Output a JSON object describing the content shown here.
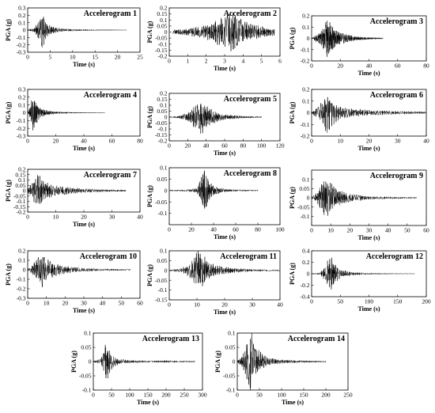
{
  "chart_data": [
    {
      "type": "line",
      "title": "Accelerogram 1",
      "xlabel": "Time (s)",
      "ylabel": "PGA (g)",
      "xlim": [
        0,
        25
      ],
      "ylim": [
        -0.3,
        0.3
      ],
      "xticks": [
        0,
        5,
        10,
        15,
        20,
        25
      ],
      "yticks": [
        -0.3,
        -0.2,
        -0.1,
        0,
        0.1,
        0.2,
        0.3
      ],
      "grid": false,
      "series_color": "#000000",
      "envelope": {
        "x": [
          0,
          1.5,
          2.5,
          3,
          3.3,
          3.8,
          4.5,
          6,
          8,
          12,
          16,
          20,
          22
        ],
        "amplitude": [
          0.005,
          0.03,
          0.14,
          0.24,
          0.27,
          0.16,
          0.09,
          0.04,
          0.02,
          0.01,
          0.006,
          0.004,
          0.002
        ]
      }
    },
    {
      "type": "line",
      "title": "Accelerogram 2",
      "xlabel": "Time (s)",
      "ylabel": "PGA (g)",
      "xlim": [
        0,
        6
      ],
      "ylim": [
        -0.2,
        0.2
      ],
      "xticks": [
        0,
        1,
        2,
        3,
        4,
        5,
        6
      ],
      "yticks": [
        -0.2,
        -0.15,
        -0.1,
        -0.05,
        0,
        0.05,
        0.1,
        0.15,
        0.2
      ],
      "grid": false,
      "series_color": "#000000",
      "envelope": {
        "x": [
          0.2,
          1,
          2,
          2.5,
          3,
          3.3,
          3.6,
          4,
          4.5,
          5,
          5.7
        ],
        "amplitude": [
          0.02,
          0.03,
          0.06,
          0.1,
          0.14,
          0.19,
          0.16,
          0.1,
          0.07,
          0.05,
          0.03
        ]
      }
    },
    {
      "type": "line",
      "title": "Accelerogram 3",
      "xlabel": "Time (s)",
      "ylabel": "PGA (g)",
      "xlim": [
        0,
        80
      ],
      "ylim": [
        -0.2,
        0.2
      ],
      "xticks": [
        0,
        20,
        40,
        60,
        80
      ],
      "yticks": [
        -0.2,
        -0.1,
        0,
        0.1,
        0.2
      ],
      "grid": false,
      "series_color": "#000000",
      "envelope": {
        "x": [
          0,
          4,
          8,
          10,
          12,
          16,
          22,
          30,
          40,
          50
        ],
        "amplitude": [
          0.005,
          0.04,
          0.1,
          0.18,
          0.16,
          0.09,
          0.05,
          0.02,
          0.01,
          0.005
        ]
      }
    },
    {
      "type": "line",
      "title": "Accelerogram 4",
      "xlabel": "Time (s)",
      "ylabel": "PGA (g)",
      "xlim": [
        0,
        80
      ],
      "ylim": [
        -0.3,
        0.3
      ],
      "xticks": [
        0,
        20,
        40,
        60,
        80
      ],
      "yticks": [
        -0.3,
        -0.2,
        -0.1,
        0,
        0.1,
        0.2,
        0.3
      ],
      "grid": false,
      "series_color": "#000000",
      "envelope": {
        "x": [
          0,
          2,
          3,
          4,
          6,
          8,
          12,
          20,
          30,
          40,
          55
        ],
        "amplitude": [
          0.01,
          0.1,
          0.2,
          0.26,
          0.18,
          0.08,
          0.04,
          0.015,
          0.008,
          0.004,
          0.002
        ]
      }
    },
    {
      "type": "line",
      "title": "Accelerogram 5",
      "xlabel": "Time (s)",
      "ylabel": "PGA (g)",
      "xlim": [
        0,
        120
      ],
      "ylim": [
        -0.2,
        0.2
      ],
      "xticks": [
        0,
        20,
        40,
        60,
        80,
        100,
        120
      ],
      "yticks": [
        -0.2,
        -0.15,
        -0.1,
        -0.05,
        0,
        0.05,
        0.1,
        0.15,
        0.2
      ],
      "grid": false,
      "series_color": "#000000",
      "envelope": {
        "x": [
          0,
          10,
          20,
          25,
          30,
          35,
          40,
          50,
          60,
          80,
          100
        ],
        "amplitude": [
          0.003,
          0.01,
          0.04,
          0.08,
          0.12,
          0.15,
          0.1,
          0.05,
          0.025,
          0.01,
          0.005
        ]
      }
    },
    {
      "type": "line",
      "title": "Accelerogram 6",
      "xlabel": "Time (s)",
      "ylabel": "PGA (g)",
      "xlim": [
        0,
        40
      ],
      "ylim": [
        -0.2,
        0.2
      ],
      "xticks": [
        0,
        10,
        20,
        30,
        40
      ],
      "yticks": [
        -0.2,
        -0.1,
        0,
        0.1,
        0.2
      ],
      "grid": false,
      "series_color": "#000000",
      "envelope": {
        "x": [
          0,
          2,
          4,
          5,
          6,
          7,
          8,
          10,
          14,
          20,
          30,
          40
        ],
        "amplitude": [
          0.01,
          0.05,
          0.12,
          0.2,
          0.17,
          0.13,
          0.09,
          0.06,
          0.04,
          0.025,
          0.015,
          0.01
        ]
      }
    },
    {
      "type": "line",
      "title": "Accelerogram 7",
      "xlabel": "Time (s)",
      "ylabel": "PGA (g)",
      "xlim": [
        0,
        40
      ],
      "ylim": [
        -0.2,
        0.2
      ],
      "xticks": [
        0,
        10,
        20,
        30,
        40
      ],
      "yticks": [
        -0.2,
        -0.15,
        -0.1,
        -0.05,
        0,
        0.05,
        0.1,
        0.15,
        0.2
      ],
      "grid": false,
      "series_color": "#000000",
      "envelope": {
        "x": [
          0,
          1,
          2,
          3,
          4,
          5,
          7,
          10,
          15,
          20,
          25,
          30,
          35
        ],
        "amplitude": [
          0.02,
          0.06,
          0.12,
          0.16,
          0.18,
          0.12,
          0.08,
          0.05,
          0.035,
          0.02,
          0.015,
          0.01,
          0.008
        ]
      }
    },
    {
      "type": "line",
      "title": "Accelerogram 8",
      "xlabel": "Time (s)",
      "ylabel": "PGA (g)",
      "xlim": [
        0,
        100
      ],
      "ylim": [
        -0.15,
        0.1
      ],
      "xticks": [
        0,
        20,
        40,
        60,
        80,
        100
      ],
      "yticks": [
        -0.1,
        -0.05,
        0,
        0.05,
        0.1
      ],
      "grid": false,
      "series_color": "#000000",
      "envelope": {
        "x": [
          0,
          15,
          25,
          28,
          31,
          33,
          36,
          40,
          50,
          60,
          80
        ],
        "amplitude": [
          0.002,
          0.004,
          0.01,
          0.05,
          0.12,
          0.1,
          0.05,
          0.02,
          0.008,
          0.004,
          0.002
        ]
      }
    },
    {
      "type": "line",
      "title": "Accelerogram 9",
      "xlabel": "Time (s)",
      "ylabel": "PGA (g)",
      "xlim": [
        0,
        60
      ],
      "ylim": [
        -0.15,
        0.15
      ],
      "xticks": [
        0,
        10,
        20,
        30,
        40,
        50,
        60
      ],
      "yticks": [
        -0.1,
        -0.05,
        0,
        0.05,
        0.1
      ],
      "grid": false,
      "series_color": "#000000",
      "envelope": {
        "x": [
          0,
          3,
          5,
          7,
          9,
          12,
          16,
          22,
          30,
          40,
          55
        ],
        "amplitude": [
          0.005,
          0.03,
          0.08,
          0.12,
          0.1,
          0.06,
          0.035,
          0.02,
          0.01,
          0.006,
          0.003
        ]
      }
    },
    {
      "type": "line",
      "title": "Accelerogram 10",
      "xlabel": "Time (s)",
      "ylabel": "PGA (g)",
      "xlim": [
        0,
        60
      ],
      "ylim": [
        -0.3,
        0.2
      ],
      "xticks": [
        0,
        10,
        20,
        30,
        40,
        50,
        60
      ],
      "yticks": [
        -0.3,
        -0.2,
        -0.1,
        0,
        0.1,
        0.2
      ],
      "grid": false,
      "series_color": "#000000",
      "envelope": {
        "x": [
          0,
          2,
          4,
          6,
          8,
          10,
          14,
          20,
          30,
          40,
          55
        ],
        "amplitude": [
          0.01,
          0.04,
          0.1,
          0.15,
          0.2,
          0.12,
          0.08,
          0.04,
          0.02,
          0.012,
          0.006
        ]
      }
    },
    {
      "type": "line",
      "title": "Accelerogram 11",
      "xlabel": "Time (s)",
      "ylabel": "PGA (g)",
      "xlim": [
        0,
        40
      ],
      "ylim": [
        -0.15,
        0.1
      ],
      "xticks": [
        0,
        10,
        20,
        30,
        40
      ],
      "yticks": [
        -0.15,
        -0.1,
        -0.05,
        0,
        0.05,
        0.1
      ],
      "grid": false,
      "series_color": "#000000",
      "envelope": {
        "x": [
          0,
          4,
          7,
          9,
          10,
          11,
          12,
          14,
          18,
          24,
          30,
          40
        ],
        "amplitude": [
          0.003,
          0.01,
          0.03,
          0.07,
          0.1,
          0.12,
          0.09,
          0.05,
          0.025,
          0.012,
          0.006,
          0.003
        ]
      }
    },
    {
      "type": "line",
      "title": "Accelerogram 12",
      "xlabel": "Time (s)",
      "ylabel": "PGA (g)",
      "xlim": [
        0,
        200
      ],
      "ylim": [
        -0.4,
        0.4
      ],
      "xticks": [
        0,
        50,
        100,
        150,
        200
      ],
      "yticks": [
        -0.4,
        -0.2,
        0,
        0.2,
        0.4
      ],
      "grid": false,
      "series_color": "#000000",
      "envelope": {
        "x": [
          0,
          15,
          25,
          30,
          35,
          40,
          50,
          70,
          100,
          150,
          180
        ],
        "amplitude": [
          0.003,
          0.02,
          0.15,
          0.3,
          0.35,
          0.2,
          0.08,
          0.03,
          0.012,
          0.005,
          0.003
        ]
      }
    },
    {
      "type": "line",
      "title": "Accelerogram 13",
      "xlabel": "Time (s)",
      "ylabel": "PGA (g)",
      "xlim": [
        0,
        300
      ],
      "ylim": [
        -0.1,
        0.1
      ],
      "xticks": [
        0,
        50,
        100,
        150,
        200,
        250,
        300
      ],
      "yticks": [
        -0.1,
        -0.05,
        0,
        0.05,
        0.1
      ],
      "grid": false,
      "series_color": "#000000",
      "envelope": {
        "x": [
          0,
          20,
          28,
          33,
          38,
          45,
          55,
          70,
          100,
          150,
          200,
          280
        ],
        "amplitude": [
          0.002,
          0.01,
          0.04,
          0.08,
          0.07,
          0.04,
          0.02,
          0.01,
          0.005,
          0.003,
          0.004,
          0.002
        ]
      }
    },
    {
      "type": "line",
      "title": "Accelerogram 14",
      "xlabel": "Time (s)",
      "ylabel": "PGA (g)",
      "xlim": [
        0,
        250
      ],
      "ylim": [
        -0.1,
        0.1
      ],
      "xticks": [
        0,
        50,
        100,
        150,
        200,
        250
      ],
      "yticks": [
        -0.1,
        -0.05,
        0,
        0.05,
        0.1
      ],
      "grid": false,
      "series_color": "#000000",
      "envelope": {
        "x": [
          0,
          10,
          20,
          28,
          33,
          38,
          45,
          55,
          70,
          100,
          140,
          200
        ],
        "amplitude": [
          0.003,
          0.02,
          0.06,
          0.1,
          0.12,
          0.08,
          0.05,
          0.03,
          0.015,
          0.007,
          0.004,
          0.002
        ]
      }
    }
  ]
}
